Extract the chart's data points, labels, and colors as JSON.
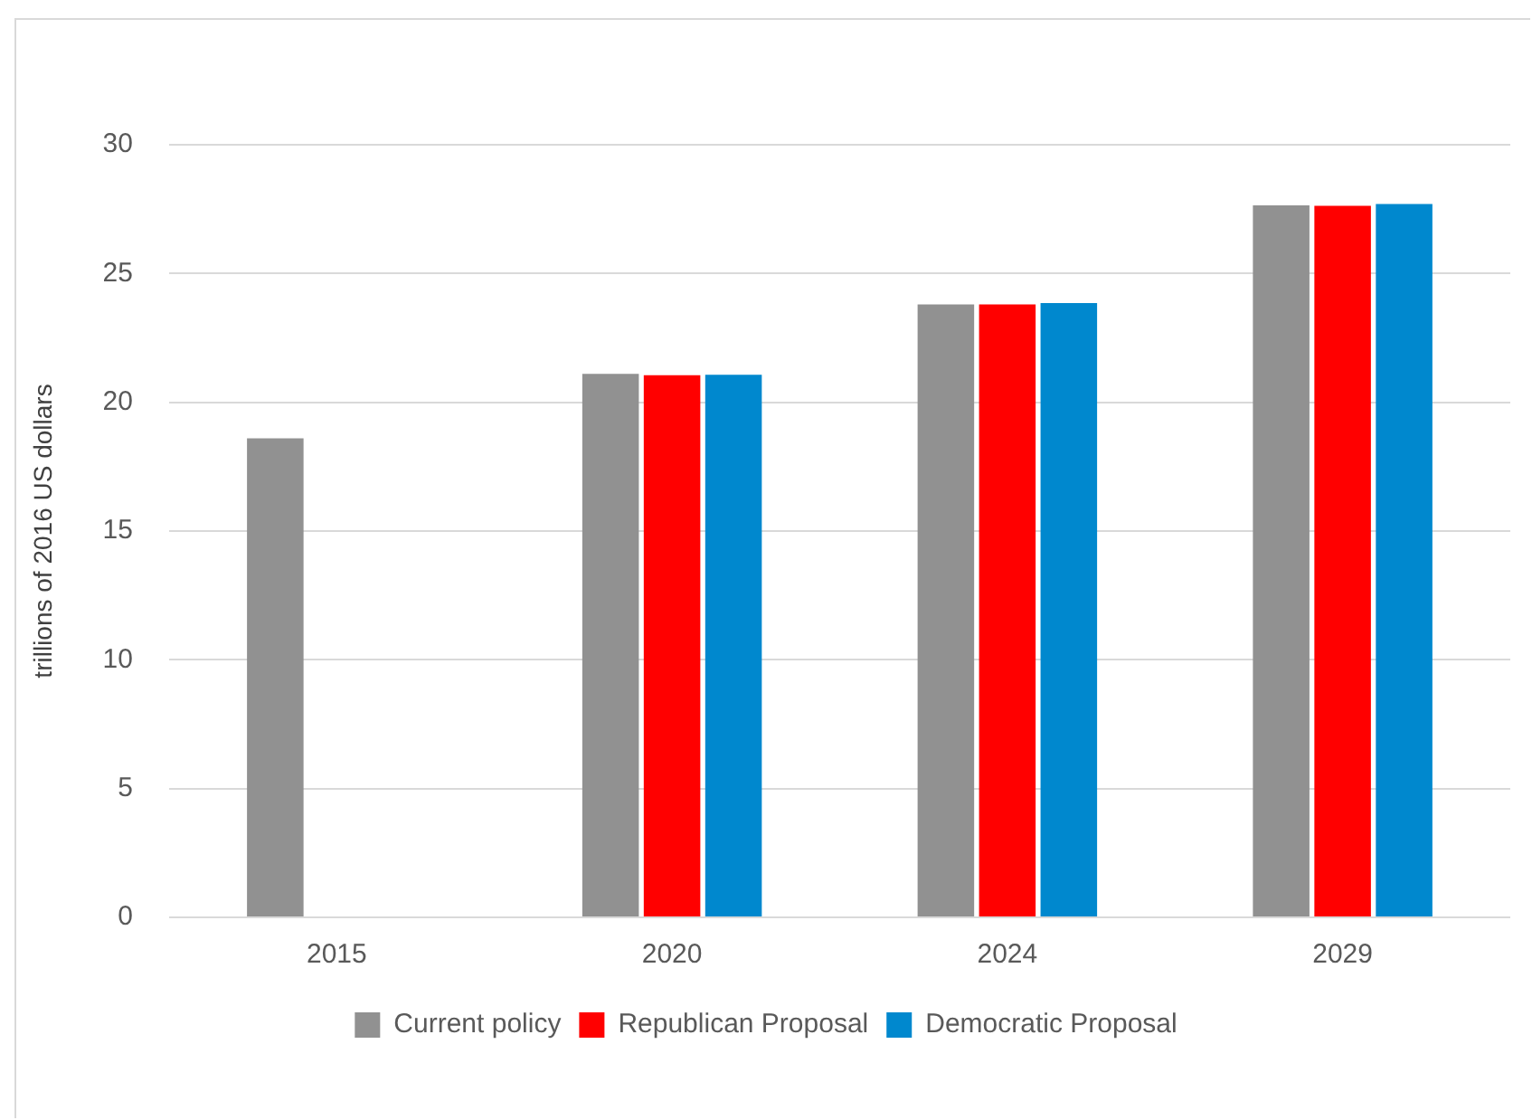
{
  "chart_data": {
    "type": "bar",
    "ylabel": "trillions of 2016 US dollars",
    "categories": [
      "2015",
      "2020",
      "2024",
      "2029"
    ],
    "series": [
      {
        "name": "Current policy",
        "color": "#919191",
        "values": [
          18.6,
          21.1,
          23.8,
          27.65
        ]
      },
      {
        "name": "Republican Proposal",
        "color": "#ff0000",
        "values": [
          null,
          21.05,
          23.8,
          27.63
        ]
      },
      {
        "name": "Democratic Proposal",
        "color": "#0088ce",
        "values": [
          null,
          21.07,
          23.85,
          27.7
        ]
      }
    ],
    "ylim": [
      0,
      30
    ],
    "yticks": [
      0,
      5,
      10,
      15,
      20,
      25,
      30
    ],
    "grid": "y",
    "legend": "bottom"
  }
}
